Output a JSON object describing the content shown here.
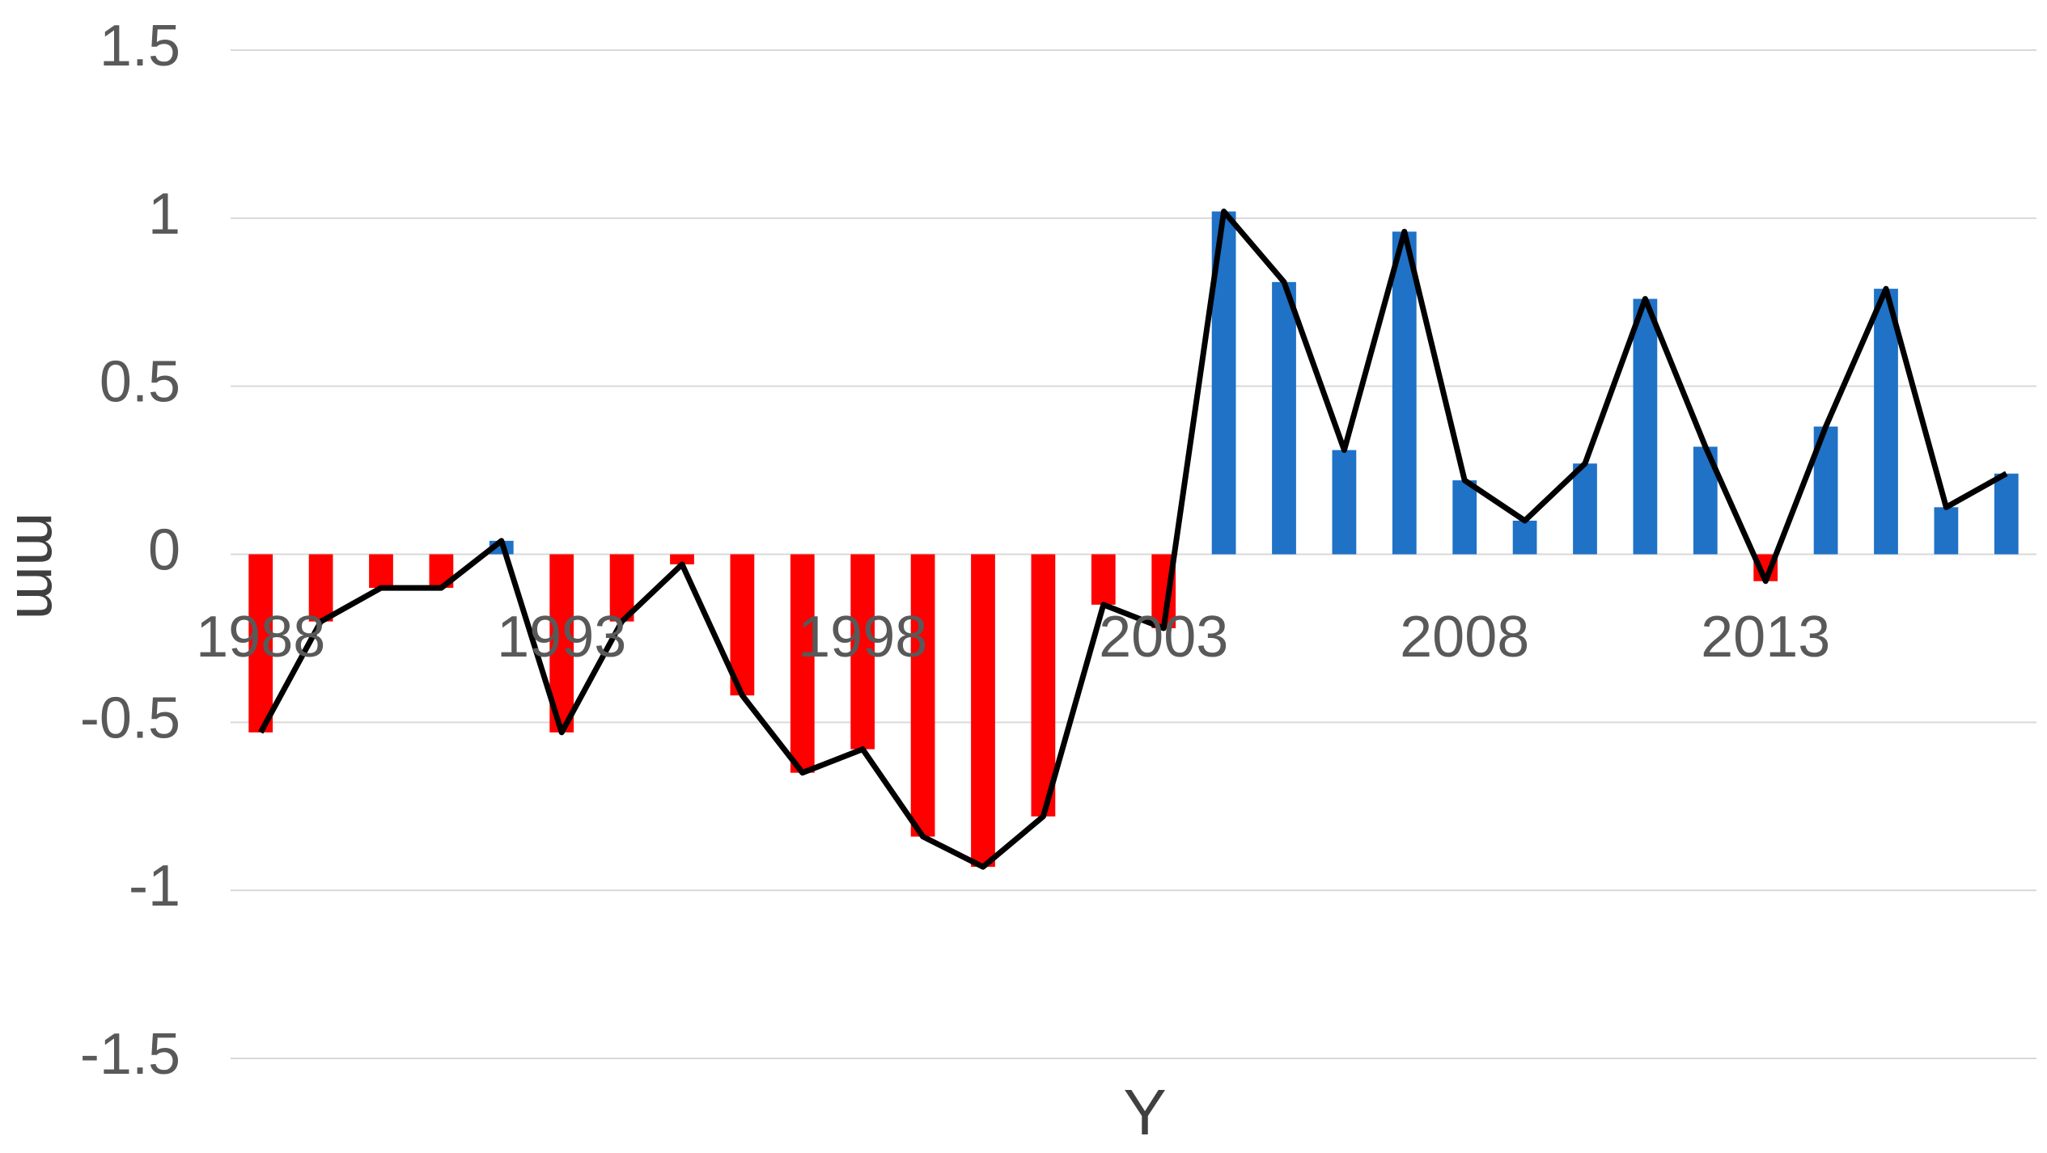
{
  "chart_data": {
    "type": "combo",
    "x_label": "Y",
    "y_label": "mm",
    "categories": [
      "1988",
      null,
      null,
      null,
      null,
      "1993",
      null,
      null,
      null,
      null,
      "1998",
      null,
      null,
      null,
      null,
      "2003",
      null,
      null,
      null,
      null,
      "2008",
      null,
      null,
      null,
      null,
      "2013",
      null,
      null,
      null,
      null
    ],
    "values": [
      -0.53,
      -0.2,
      -0.1,
      -0.1,
      0.04,
      -0.53,
      -0.2,
      -0.03,
      -0.42,
      -0.65,
      -0.58,
      -0.84,
      -0.93,
      -0.78,
      -0.15,
      -0.22,
      1.02,
      0.81,
      0.31,
      0.96,
      0.22,
      0.1,
      0.27,
      0.76,
      0.32,
      -0.08,
      0.38,
      0.79,
      0.14,
      0.24
    ],
    "positive_color": "#1f72c6",
    "negative_color": "#ff0000",
    "line_color": "#000000",
    "ylim": [
      -1.5,
      1.5
    ],
    "yticks": [
      1.5,
      1,
      0.5,
      0,
      -0.5,
      -1,
      -1.5
    ],
    "grid": true
  }
}
